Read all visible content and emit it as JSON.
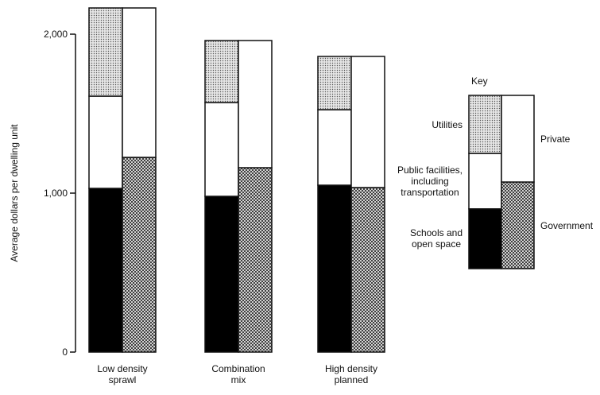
{
  "chart_data": {
    "type": "stacked_bar",
    "ylabel": "Average dollars per dwelling unit",
    "categories": [
      "Low density\nsprawl",
      "Combination\nmix",
      "High density\nplanned"
    ],
    "ylim": [
      0,
      2200
    ],
    "yticks": [
      0,
      {
        "value": 1000,
        "label": "1,000"
      },
      {
        "value": 2000,
        "label": "2,000"
      }
    ],
    "legend_title": "Key",
    "series": [
      {
        "name": "Schools and\nopen space",
        "stack": "left",
        "color": "#000000",
        "pattern": null,
        "values": [
          1030,
          980,
          1050
        ]
      },
      {
        "name": "Public facilities,\nincluding\ntransportation",
        "stack": "left",
        "color": "#ffffff",
        "pattern": null,
        "values": [
          580,
          590,
          475
        ]
      },
      {
        "name": "Utilities",
        "stack": "left",
        "color": "#d8d8d8",
        "pattern": "dots",
        "values": [
          555,
          390,
          335
        ]
      },
      {
        "name": "Government",
        "stack": "right",
        "color": "#cccccc",
        "pattern": "crosshatch",
        "values": [
          1225,
          1160,
          1035
        ]
      },
      {
        "name": "Private",
        "stack": "right",
        "color": "#ffffff",
        "pattern": null,
        "values": [
          940,
          800,
          825
        ]
      }
    ]
  }
}
